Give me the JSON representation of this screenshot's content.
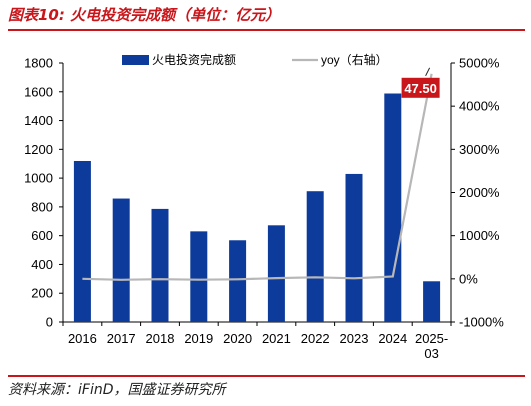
{
  "header": {
    "title": "图表10: 火电投资完成额（单位：亿元）"
  },
  "footer": {
    "source": "资料来源：iFinD，国盛证券研究所"
  },
  "chart_data": {
    "type": "bar",
    "categories": [
      "2016",
      "2017",
      "2018",
      "2019",
      "2020",
      "2021",
      "2022",
      "2023",
      "2024",
      "2025-03"
    ],
    "series": [
      {
        "name": "火电投资完成额",
        "type": "bar",
        "axis": "left",
        "color": "#0d3b9c",
        "values": [
          1119,
          858,
          786,
          630,
          568,
          672,
          909,
          1029,
          1588,
          283
        ]
      },
      {
        "name": "yoy（右轴）",
        "type": "line",
        "axis": "right",
        "color": "#b7b7b7",
        "values": [
          0.0,
          -0.23,
          -0.08,
          -0.2,
          -0.1,
          0.18,
          0.35,
          0.13,
          0.54,
          47.5
        ]
      }
    ],
    "ylim": [
      0,
      1800
    ],
    "yticks": [
      "0",
      "200",
      "400",
      "600",
      "800",
      "1000",
      "1200",
      "1400",
      "1600",
      "1800"
    ],
    "y2lim": [
      -10,
      50
    ],
    "y2ticks": [
      "-1000%",
      "0%",
      "1000%",
      "2000%",
      "3000%",
      "4000%",
      "5000%"
    ],
    "annotation": {
      "label": "47.50",
      "color": "#c9161b"
    },
    "legend_position": "top",
    "grid": false
  }
}
